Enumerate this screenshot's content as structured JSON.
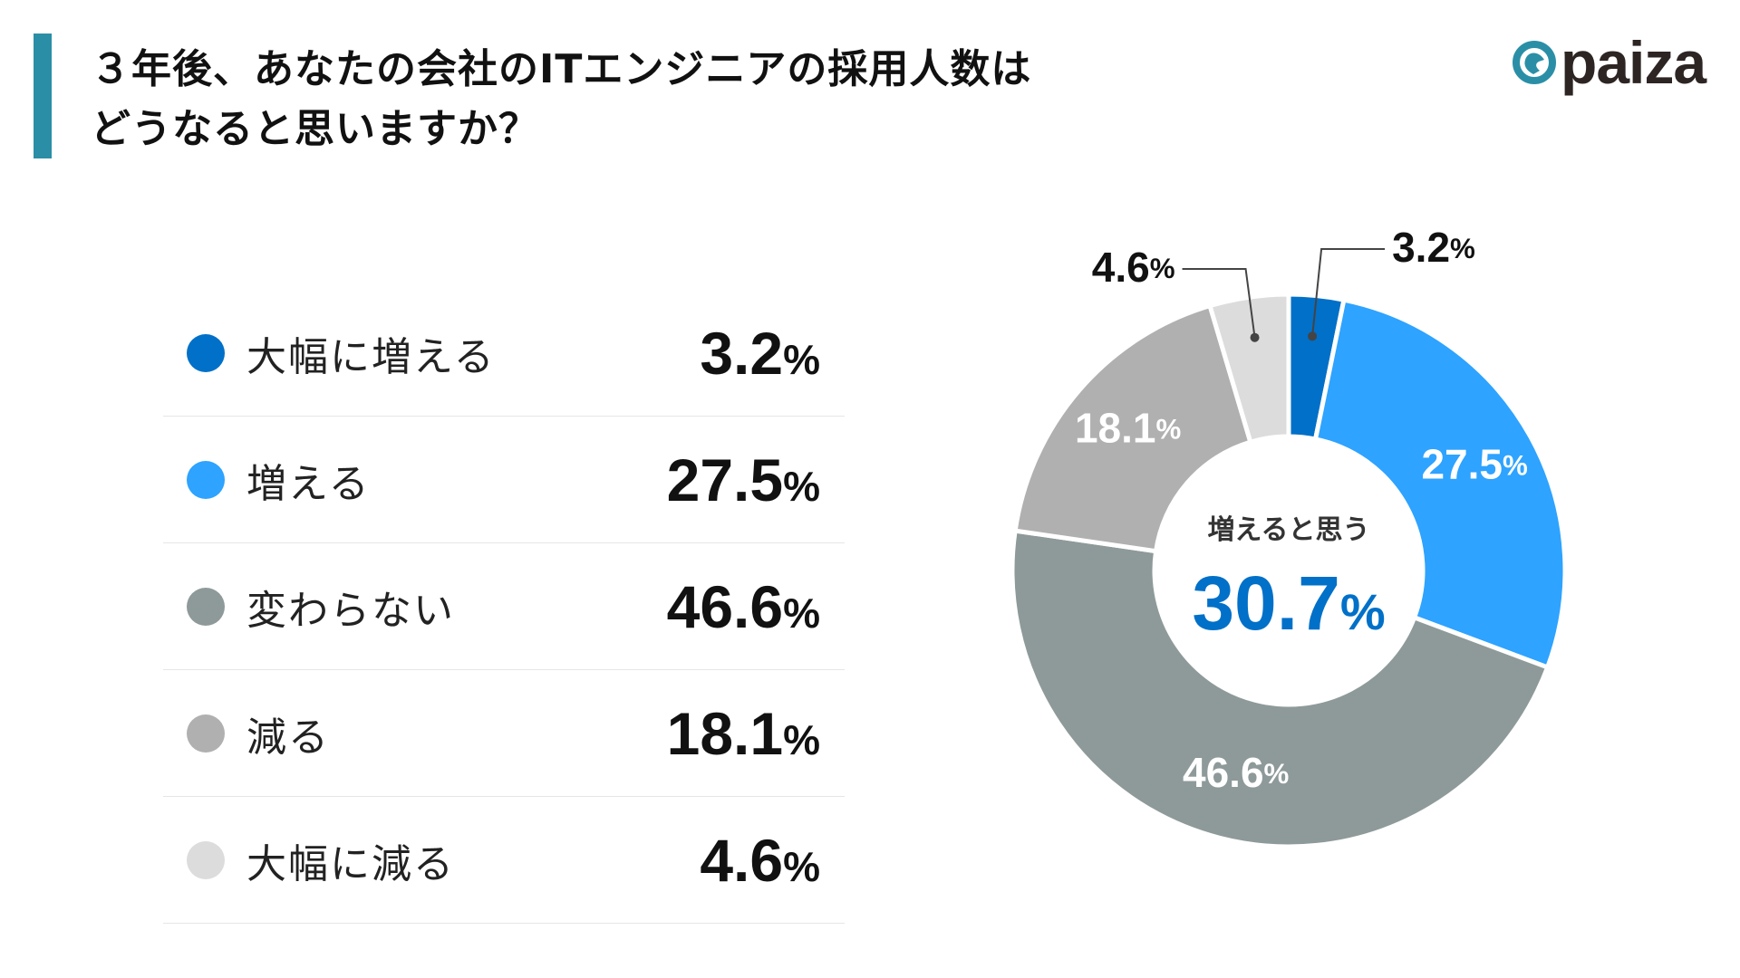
{
  "header": {
    "title_line1": "３年後、あなたの会社のITエンジニアの採用人数は",
    "title_line2": "どうなると思いますか？",
    "accent_color": "#2a8fa6",
    "logo_text": "paiza"
  },
  "chart_data": {
    "type": "donut",
    "title": "３年後、あなたの会社のITエンジニアの採用人数はどうなると思いますか？",
    "unit": "%",
    "categories": [
      "大幅に増える",
      "増える",
      "変わらない",
      "減る",
      "大幅に減る"
    ],
    "values": [
      3.2,
      27.5,
      46.6,
      18.1,
      4.6
    ],
    "value_labels": [
      "3.2",
      "27.5",
      "46.6",
      "18.1",
      "4.6"
    ],
    "colors": [
      "#0070c8",
      "#2ea3ff",
      "#8e9a99",
      "#b0b0b0",
      "#dcdcdc"
    ],
    "start": "top",
    "direction": "clockwise",
    "legend_placement": "left",
    "center_caption": "増えると思う",
    "center_value": "30.7",
    "center_color": "#0070c8"
  }
}
